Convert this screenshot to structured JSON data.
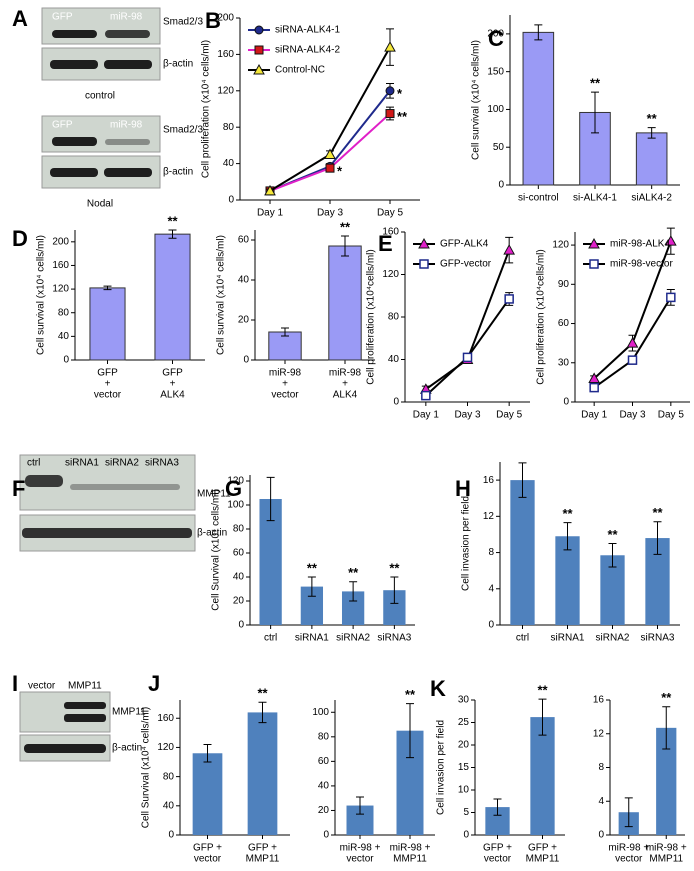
{
  "panel_labels": [
    "A",
    "B",
    "C",
    "D",
    "E",
    "F",
    "G",
    "H",
    "I",
    "J",
    "K"
  ],
  "blots": [
    {
      "lanes": [
        "GFP",
        "miR-98"
      ],
      "bands": [
        "Smad2/3",
        "β-actin"
      ],
      "condition": "control"
    },
    {
      "lanes": [
        "GFP",
        "miR-98"
      ],
      "bands": [
        "Smad2/3",
        "β-actin"
      ],
      "condition": "Nodal"
    },
    {
      "lanes": [
        "ctrl",
        "siRNA1",
        "siRNA2",
        "siRNA3"
      ],
      "bands": [
        "MMP11",
        "β-actin"
      ]
    },
    {
      "lanes": [
        "vector",
        "MMP11"
      ],
      "bands": [
        "MMP11",
        "β-actin"
      ]
    }
  ],
  "chart_data": [
    {
      "type": "line",
      "y_label": "Cell proliferation (x10⁴ cells/ml)",
      "categories": [
        "Day 1",
        "Day 3",
        "Day 5"
      ],
      "ylim": [
        0,
        200
      ],
      "yticks": [
        0,
        40,
        80,
        120,
        160,
        200
      ],
      "legend": "upper left",
      "series": [
        {
          "name": "siRNA-ALK4-1",
          "color": "#1f2a8c",
          "marker": "circle",
          "marker_color": "#1f2a8c",
          "values": [
            10,
            37,
            120
          ],
          "errors": [
            2,
            3,
            8
          ],
          "significance": [
            null,
            null,
            "*"
          ]
        },
        {
          "name": "siRNA-ALK4-2",
          "color": "#e020c8",
          "marker": "square",
          "marker_color": "#d01818",
          "values": [
            10,
            35,
            95
          ],
          "errors": [
            2,
            3,
            7
          ],
          "significance": [
            null,
            "*",
            "**"
          ]
        },
        {
          "name": "Control-NC",
          "color": "#000000",
          "marker": "triangle",
          "marker_color": "#f5e83a",
          "values": [
            10,
            50,
            168
          ],
          "errors": [
            2,
            4,
            20
          ],
          "significance": [
            null,
            null,
            null
          ]
        }
      ]
    },
    {
      "type": "bar",
      "y_label": "Cell survival (x10⁴ cells/ml)",
      "categories": [
        [
          "si-control"
        ],
        [
          "si-ALK4-1"
        ],
        [
          "siALK4-2"
        ]
      ],
      "ylim": [
        0,
        225
      ],
      "yticks": [
        0,
        50,
        100,
        150,
        200
      ],
      "color": "#9a9af5",
      "values": [
        202,
        96,
        69
      ],
      "errors": [
        10,
        27,
        7
      ],
      "significance": [
        null,
        "**",
        "**"
      ]
    },
    {
      "type": "bar",
      "y_label": "Cell survival (x10⁴ cells/ml)",
      "categories": [
        [
          "GFP",
          "+",
          "vector"
        ],
        [
          "GFP",
          "+",
          "ALK4"
        ]
      ],
      "ylim": [
        0,
        220
      ],
      "yticks": [
        0,
        40,
        80,
        120,
        160,
        200
      ],
      "color": "#9a9af5",
      "values": [
        122,
        213
      ],
      "errors": [
        3,
        7
      ],
      "significance": [
        null,
        "**"
      ]
    },
    {
      "type": "bar",
      "y_label": "Cell survival (x10⁴ cells/ml)",
      "categories": [
        [
          "miR-98",
          "+",
          "vector"
        ],
        [
          "miR-98",
          "+",
          "ALK4"
        ]
      ],
      "ylim": [
        0,
        65
      ],
      "yticks": [
        0,
        20,
        40,
        60
      ],
      "color": "#9a9af5",
      "values": [
        14,
        57
      ],
      "errors": [
        2,
        5
      ],
      "significance": [
        null,
        "**"
      ]
    },
    {
      "type": "line",
      "y_label": "Cell proliferation (x10⁴cells/ml)",
      "categories": [
        "Day 1",
        "Day 3",
        "Day 5"
      ],
      "ylim": [
        0,
        160
      ],
      "yticks": [
        0,
        40,
        80,
        120,
        160
      ],
      "legend": "upper left",
      "series": [
        {
          "name": "GFP-ALK4",
          "color": "#000000",
          "marker": "triangle",
          "marker_color": "#e020c8",
          "values": [
            12,
            40,
            143
          ],
          "errors": [
            3,
            3,
            12
          ]
        },
        {
          "name": "GFP-vector",
          "color": "#000000",
          "marker": "square-open",
          "marker_color": "#1f2a8c",
          "values": [
            6,
            42,
            97
          ],
          "errors": [
            2,
            3,
            6
          ]
        }
      ]
    },
    {
      "type": "line",
      "y_label": "Cell proliferation (x10⁴cells/ml)",
      "categories": [
        "Day 1",
        "Day 3",
        "Day 5"
      ],
      "ylim": [
        0,
        130
      ],
      "yticks": [
        0,
        30,
        60,
        90,
        120
      ],
      "legend": "upper left",
      "series": [
        {
          "name": "miR-98-ALK4",
          "color": "#000000",
          "marker": "triangle",
          "marker_color": "#e020c8",
          "values": [
            18,
            45,
            123
          ],
          "errors": [
            2,
            6,
            10
          ]
        },
        {
          "name": "miR-98-vector",
          "color": "#000000",
          "marker": "square-open",
          "marker_color": "#1f2a8c",
          "values": [
            11,
            32,
            80
          ],
          "errors": [
            2,
            3,
            6
          ]
        }
      ]
    },
    {
      "type": "bar",
      "y_label": "Cell Survival (x10⁴ cells/ml)",
      "categories": [
        [
          "ctrl"
        ],
        [
          "siRNA1"
        ],
        [
          "siRNA2"
        ],
        [
          "siRNA3"
        ]
      ],
      "ylim": [
        0,
        125
      ],
      "yticks": [
        0,
        20,
        40,
        60,
        80,
        100,
        120
      ],
      "color": "#4f81bd",
      "values": [
        105,
        32,
        28,
        29
      ],
      "errors": [
        18,
        8,
        8,
        11
      ],
      "significance": [
        null,
        "**",
        "**",
        "**"
      ]
    },
    {
      "type": "bar",
      "y_label": "Cell invasion per field",
      "categories": [
        [
          "ctrl"
        ],
        [
          "siRNA1"
        ],
        [
          "siRNA2"
        ],
        [
          "siRNA3"
        ]
      ],
      "ylim": [
        0,
        18
      ],
      "yticks": [
        0,
        4,
        8,
        12,
        16
      ],
      "color": "#4f81bd",
      "values": [
        16,
        9.8,
        7.7,
        9.6
      ],
      "errors": [
        1.9,
        1.5,
        1.3,
        1.8
      ],
      "significance": [
        null,
        "**",
        "**",
        "**"
      ]
    },
    {
      "type": "bar",
      "y_label": "Cell Survival (x10⁴ cells/ml)",
      "categories": [
        [
          "GFP +",
          "vector"
        ],
        [
          "GFP +",
          "MMP11"
        ]
      ],
      "ylim": [
        0,
        185
      ],
      "yticks": [
        0,
        40,
        80,
        120,
        160
      ],
      "color": "#4f81bd",
      "values": [
        112,
        168
      ],
      "errors": [
        12,
        14
      ],
      "significance": [
        null,
        "**"
      ]
    },
    {
      "type": "bar",
      "categories": [
        [
          "miR-98 +",
          "vector"
        ],
        [
          "miR-98 +",
          "MMP11"
        ]
      ],
      "ylim": [
        0,
        110
      ],
      "yticks": [
        0,
        20,
        40,
        60,
        80,
        100
      ],
      "color": "#4f81bd",
      "values": [
        24,
        85
      ],
      "errors": [
        7,
        22
      ],
      "significance": [
        null,
        "**"
      ]
    },
    {
      "type": "bar",
      "y_label": "Cell invasion per field",
      "categories": [
        [
          "GFP +",
          "vector"
        ],
        [
          "GFP +",
          "MMP11"
        ]
      ],
      "ylim": [
        0,
        30
      ],
      "yticks": [
        0,
        5,
        10,
        15,
        20,
        25,
        30
      ],
      "color": "#4f81bd",
      "values": [
        6.2,
        26.2
      ],
      "errors": [
        1.8,
        4
      ],
      "significance": [
        null,
        "**"
      ]
    },
    {
      "type": "bar",
      "categories": [
        [
          "miR-98 +",
          "vector"
        ],
        [
          "miR-98 +",
          "MMP11"
        ]
      ],
      "ylim": [
        0,
        16
      ],
      "yticks": [
        0,
        4,
        8,
        12,
        16
      ],
      "color": "#4f81bd",
      "values": [
        2.7,
        12.7
      ],
      "errors": [
        1.7,
        2.5
      ],
      "significance": [
        null,
        "**"
      ]
    }
  ]
}
